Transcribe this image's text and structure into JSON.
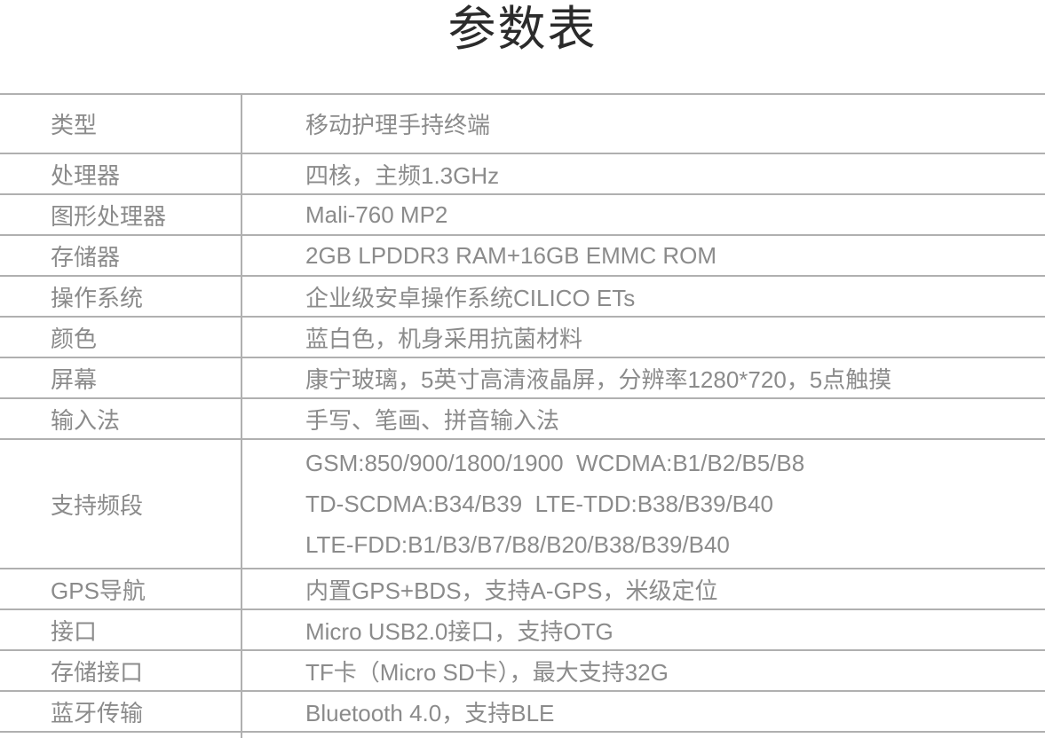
{
  "title": "参数表",
  "colors": {
    "title_text": "#2b2b2b",
    "table_text": "#8b8b8b",
    "rule_lines": "#b0b0b0",
    "background": "#ffffff"
  },
  "table": {
    "rows": [
      {
        "label": "类型",
        "value": "移动护理手持终端"
      },
      {
        "label": "处理器",
        "value": "四核，主频1.3GHz"
      },
      {
        "label": "图形处理器",
        "value": "Mali-760 MP2"
      },
      {
        "label": "存储器",
        "value": "2GB LPDDR3 RAM+16GB EMMC ROM"
      },
      {
        "label": "操作系统",
        "value": "企业级安卓操作系统CILICO ETs"
      },
      {
        "label": "颜色",
        "value": "蓝白色，机身采用抗菌材料"
      },
      {
        "label": "屏幕",
        "value": "康宁玻璃，5英寸高清液晶屏，分辨率1280*720，5点触摸"
      },
      {
        "label": "输入法",
        "value": "手写、笔画、拼音输入法"
      },
      {
        "label": "支持频段",
        "lines": [
          "GSM:850/900/1800/1900  WCDMA:B1/B2/B5/B8",
          "TD-SCDMA:B34/B39  LTE-TDD:B38/B39/B40",
          "LTE-FDD:B1/B3/B7/B8/B20/B38/B39/B40"
        ]
      },
      {
        "label": "GPS导航",
        "value": "内置GPS+BDS，支持A-GPS，米级定位"
      },
      {
        "label": "接口",
        "value": "Micro USB2.0接口，支持OTG"
      },
      {
        "label": "存储接口",
        "value": "TF卡（Micro SD卡），最大支持32G"
      },
      {
        "label": "蓝牙传输",
        "value": "Bluetooth 4.0，支持BLE"
      }
    ]
  }
}
